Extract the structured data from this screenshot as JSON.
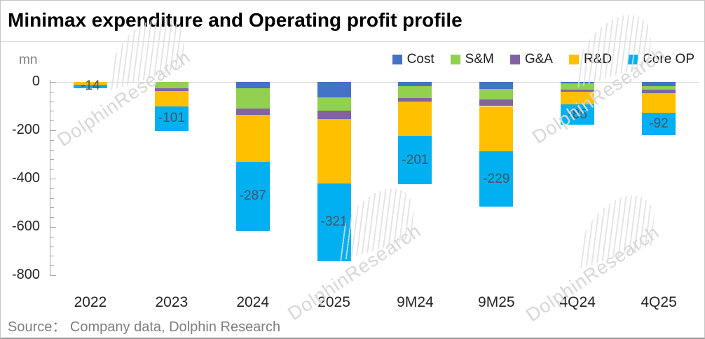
{
  "chart_data": {
    "type": "bar",
    "stacked": true,
    "title": "Minimax expenditure and Operating profit profile",
    "unit_label": "mn",
    "categories": [
      "2022",
      "2023",
      "2024",
      "2025",
      "9M24",
      "9M25",
      "4Q24",
      "4Q25"
    ],
    "series": [
      {
        "name": "Cost",
        "color": "#4472C4",
        "values": [
          0,
          0,
          -25,
          -65,
          -18,
          -30,
          -5,
          -18
        ]
      },
      {
        "name": "S&M",
        "color": "#92D050",
        "values": [
          0,
          -27,
          -85,
          -55,
          -48,
          -43,
          -28,
          -14
        ]
      },
      {
        "name": "G&A",
        "color": "#8064A2",
        "values": [
          0,
          -10,
          -25,
          -35,
          -14,
          -27,
          -8,
          -15
        ]
      },
      {
        "name": "R&D",
        "color": "#FFC000",
        "values": [
          -11,
          -64,
          -195,
          -265,
          -143,
          -188,
          -52,
          -81
        ]
      },
      {
        "name": "Core OP",
        "color": "#00B0F0",
        "values": [
          -14,
          -101,
          -287,
          -321,
          -201,
          -229,
          -85,
          -92
        ]
      }
    ],
    "data_labels": [
      "-14",
      "-101",
      "-287",
      "-321",
      "-201",
      "-229",
      "-85",
      "-92"
    ],
    "labeled_series": "Core OP",
    "ylim": [
      -800,
      0
    ],
    "yticks": [
      "0",
      "-200",
      "-400",
      "-600",
      "-800"
    ],
    "minor_tick_step": 40,
    "grid": "zero-line-only",
    "legend_position": "top-right"
  },
  "source": "Source：  Company data, Dolphin Research",
  "watermark": {
    "text": "DolphinResearch"
  }
}
